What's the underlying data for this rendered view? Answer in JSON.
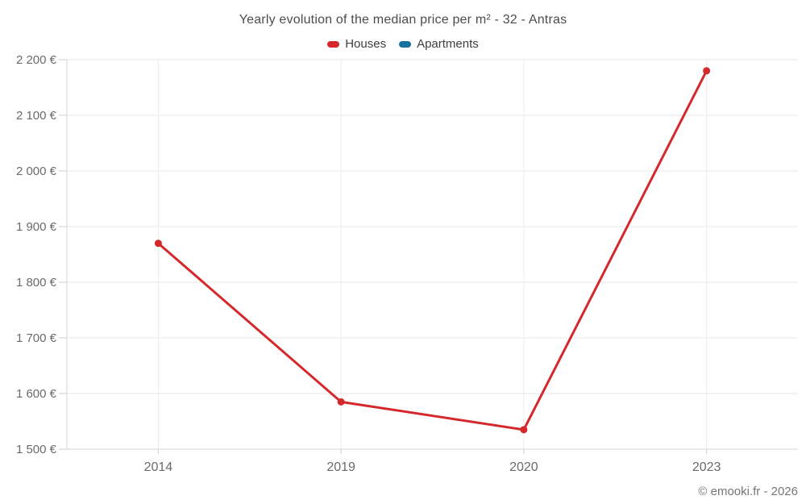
{
  "chart_data": {
    "type": "line",
    "title": "Yearly evolution of the median price per m² - 32 - Antras",
    "categories": [
      "2014",
      "2019",
      "2020",
      "2023"
    ],
    "series": [
      {
        "name": "Houses",
        "color": "#d5282c",
        "values": [
          1870,
          1585,
          1535,
          2180
        ]
      },
      {
        "name": "Apartments",
        "color": "#17719e",
        "values": []
      }
    ],
    "ylim": [
      1500,
      2200
    ],
    "ytick_step": 100,
    "yticks": [
      1500,
      1600,
      1700,
      1800,
      1900,
      2000,
      2100,
      2200
    ],
    "ytick_labels": [
      "1 500 €",
      "1 600 €",
      "1 700 €",
      "1 800 €",
      "1 900 €",
      "2 000 €",
      "2 100 €",
      "2 200 €"
    ],
    "xlabel": "",
    "ylabel": "",
    "grid": true,
    "legend_position": "top",
    "colors": {
      "grid_horizontal": "#e7e7e7",
      "grid_vertical": "#ececec",
      "axis_line": "#d6d6d6",
      "tick": "#cfcfcf",
      "axis_text": "#6a6a6a",
      "title_text": "#4c4c4c"
    }
  },
  "legend": {
    "items": [
      {
        "label": "Houses",
        "color": "#d5282c"
      },
      {
        "label": "Apartments",
        "color": "#17719e"
      }
    ]
  },
  "footer": {
    "credit": "© emooki.fr - 2026"
  }
}
